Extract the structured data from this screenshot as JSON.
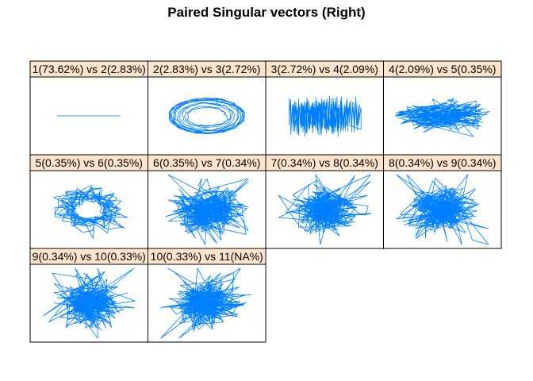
{
  "chart_data": {
    "type": "scatter",
    "title": "Paired Singular vectors (Right)",
    "line_color": "#0080ff",
    "strip_color": "#ffe5cc",
    "layout": {
      "columns": 4,
      "rows": 3
    },
    "panels": [
      {
        "label": "1(73.62%) vs 2(2.83%)",
        "pattern": "flat"
      },
      {
        "label": "2(2.83%) vs 3(2.72%)",
        "pattern": "ellipse"
      },
      {
        "label": "3(2.72%) vs 4(2.09%)",
        "pattern": "zigzag"
      },
      {
        "label": "4(2.09%) vs 5(0.35%)",
        "pattern": "horizontal"
      },
      {
        "label": "5(0.35%) vs 6(0.35%)",
        "pattern": "loops"
      },
      {
        "label": "6(0.35%) vs 7(0.34%)",
        "pattern": "wide"
      },
      {
        "label": "7(0.34%) vs 8(0.34%)",
        "pattern": "star"
      },
      {
        "label": "8(0.34%) vs 9(0.34%)",
        "pattern": "star"
      },
      {
        "label": "9(0.34%) vs 10(0.33%)",
        "pattern": "star"
      },
      {
        "label": "10(0.33%) vs 11(NA%)",
        "pattern": "star"
      }
    ]
  }
}
